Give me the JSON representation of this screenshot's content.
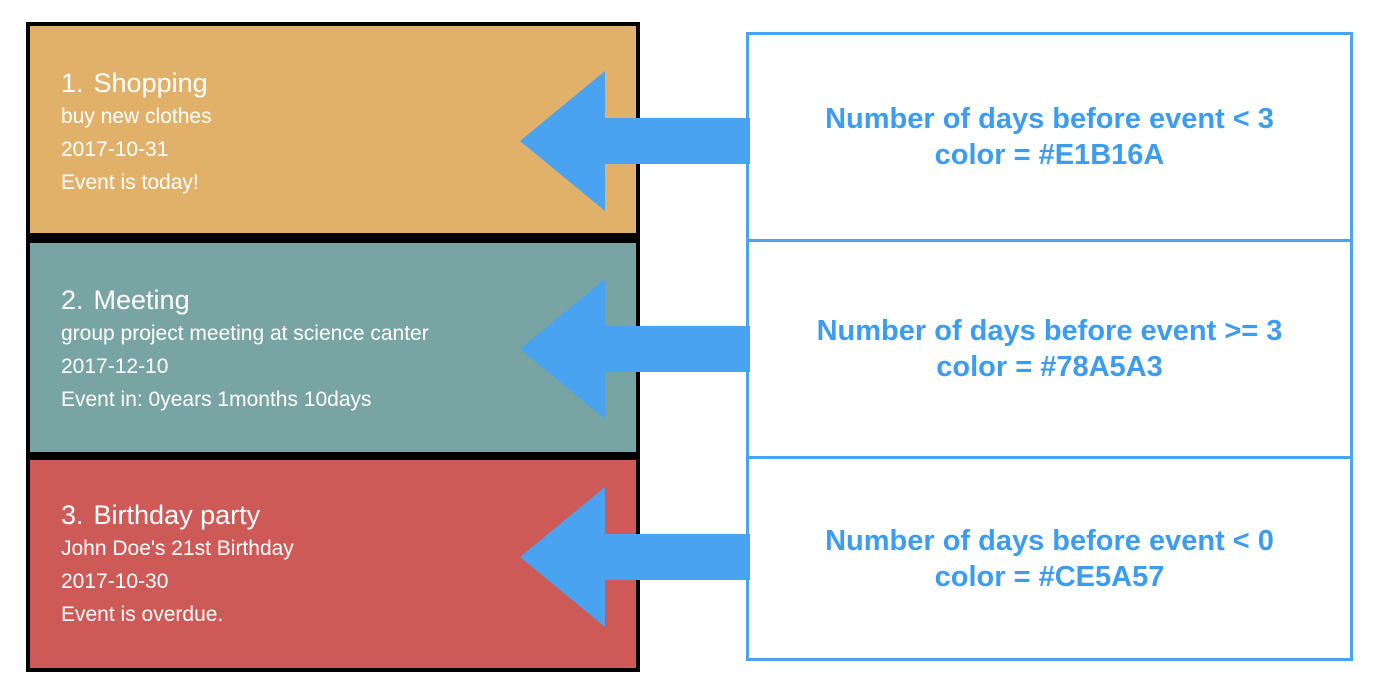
{
  "events": [
    {
      "number": "1.",
      "title": "Shopping",
      "description": "buy new clothes",
      "date": "2017-10-31",
      "status": "Event is today!",
      "color": "#E1B16A"
    },
    {
      "number": "2.",
      "title": "Meeting",
      "description": "group project meeting at science canter",
      "date": "2017-12-10",
      "status": "Event in: 0years 1months 10days",
      "color": "#78A5A3"
    },
    {
      "number": "3.",
      "title": "Birthday party",
      "description": "John Doe's 21st Birthday",
      "date": "2017-10-30",
      "status": "Event is overdue.",
      "color": "#CE5A57"
    }
  ],
  "rules": [
    {
      "condition": "Number of days before event < 3",
      "color_text": "color = #E1B16A"
    },
    {
      "condition": "Number of days before event >= 3",
      "color_text": "color = #78A5A3"
    },
    {
      "condition": "Number of days before event < 0",
      "color_text": "color = #CE5A57"
    }
  ],
  "accent_color": "#4AA3F0"
}
